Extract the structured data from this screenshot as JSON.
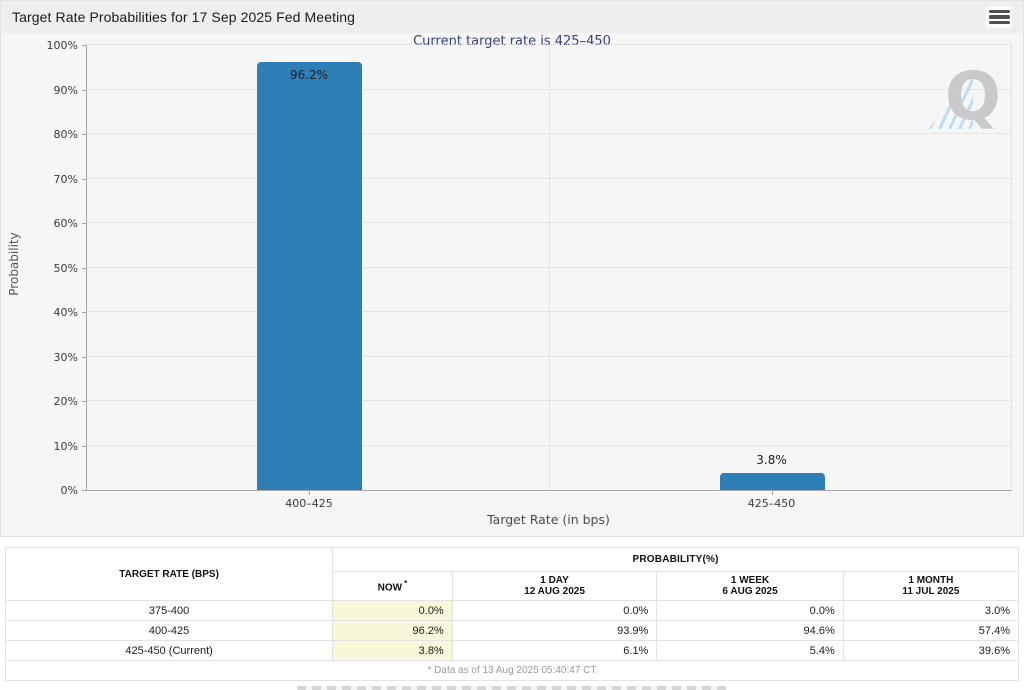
{
  "header": {
    "title": "Target Rate Probabilities for 17 Sep 2025 Fed Meeting"
  },
  "chart": {
    "subtitle": "Current target rate is 425–450",
    "ylabel": "Probability",
    "xlabel": "Target Rate (in bps)",
    "watermark_letter": "Q",
    "y_ticks": [
      "0%",
      "10%",
      "20%",
      "30%",
      "40%",
      "50%",
      "60%",
      "70%",
      "80%",
      "90%",
      "100%"
    ],
    "bars": [
      {
        "category": "400–425",
        "value": 96.2,
        "label": "96.2%",
        "label_placement": "inside"
      },
      {
        "category": "425–450",
        "value": 3.8,
        "label": "3.8%",
        "label_placement": "above"
      }
    ],
    "bar_color": "#2E7EB8"
  },
  "chart_data": {
    "type": "bar",
    "title": "Target Rate Probabilities for 17 Sep 2025 Fed Meeting",
    "subtitle": "Current target rate is 425–450",
    "categories": [
      "400–425",
      "425–450"
    ],
    "values": [
      96.2,
      3.8
    ],
    "data_labels": [
      "96.2%",
      "3.8%"
    ],
    "xlabel": "Target Rate (in bps)",
    "ylabel": "Probability",
    "ylim": [
      0,
      100
    ],
    "y_tick_step": 10,
    "grid": "horizontal-dotted",
    "legend": "none",
    "bar_color": "#2E7EB8"
  },
  "table": {
    "corner_header": "TARGET RATE (BPS)",
    "group_header": "PROBABILITY(%)",
    "columns": [
      {
        "line1": "NOW",
        "sup": "*",
        "line2": ""
      },
      {
        "line1": "1 DAY",
        "line2": "12 AUG 2025"
      },
      {
        "line1": "1 WEEK",
        "line2": "6 AUG 2025"
      },
      {
        "line1": "1 MONTH",
        "line2": "11 JUL 2025"
      }
    ],
    "rows": [
      {
        "label": "375-400",
        "values": [
          "0.0%",
          "0.0%",
          "0.0%",
          "3.0%"
        ]
      },
      {
        "label": "400-425",
        "values": [
          "96.2%",
          "93.9%",
          "94.6%",
          "57.4%"
        ]
      },
      {
        "label": "425-450 (Current)",
        "values": [
          "3.8%",
          "6.1%",
          "5.4%",
          "39.6%"
        ]
      }
    ],
    "footnote": "* Data as of 13 Aug 2025 05:40:47 CT",
    "now_highlight_color": "#F7F7DA"
  }
}
